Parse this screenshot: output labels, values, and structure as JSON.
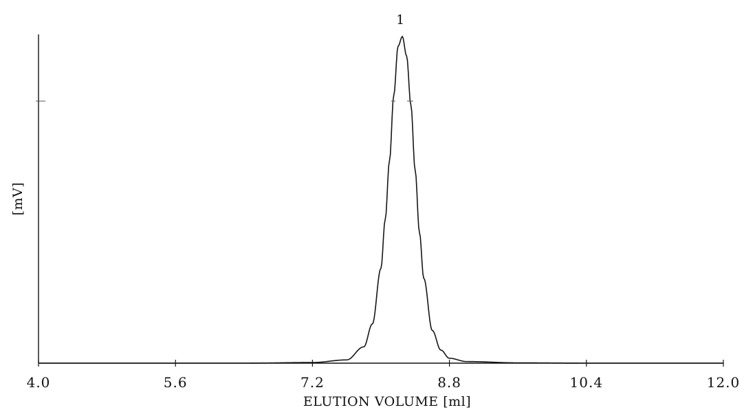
{
  "chart_data": {
    "type": "line",
    "xlabel": "ELUTION VOLUME [ml]",
    "ylabel": "[mV]",
    "xlim": [
      4.0,
      12.0
    ],
    "x_ticks": [
      "4.0",
      "5.6",
      "7.2",
      "8.8",
      "10.4",
      "12.0"
    ],
    "grid": false,
    "legend": "none",
    "series": [
      {
        "x": [
          4.0,
          4.8,
          5.6,
          6.4,
          7.2,
          7.6,
          7.8,
          7.9,
          8.0,
          8.05,
          8.1,
          8.15,
          8.2,
          8.25,
          8.3,
          8.35,
          8.4,
          8.45,
          8.5,
          8.6,
          8.7,
          8.8,
          9.0,
          9.6,
          10.4,
          11.2,
          12.0
        ],
        "y": [
          0.0,
          0.0,
          0.0,
          0.0,
          0.002,
          0.01,
          0.05,
          0.12,
          0.29,
          0.44,
          0.62,
          0.82,
          0.97,
          1.0,
          0.94,
          0.79,
          0.59,
          0.4,
          0.26,
          0.1,
          0.04,
          0.015,
          0.005,
          0.001,
          0.0,
          0.0,
          0.0
        ]
      }
    ],
    "annotations": [
      {
        "text": "1",
        "x": 8.25
      }
    ]
  },
  "style": {
    "line_color": "#151515",
    "axis_color": "#111111"
  }
}
